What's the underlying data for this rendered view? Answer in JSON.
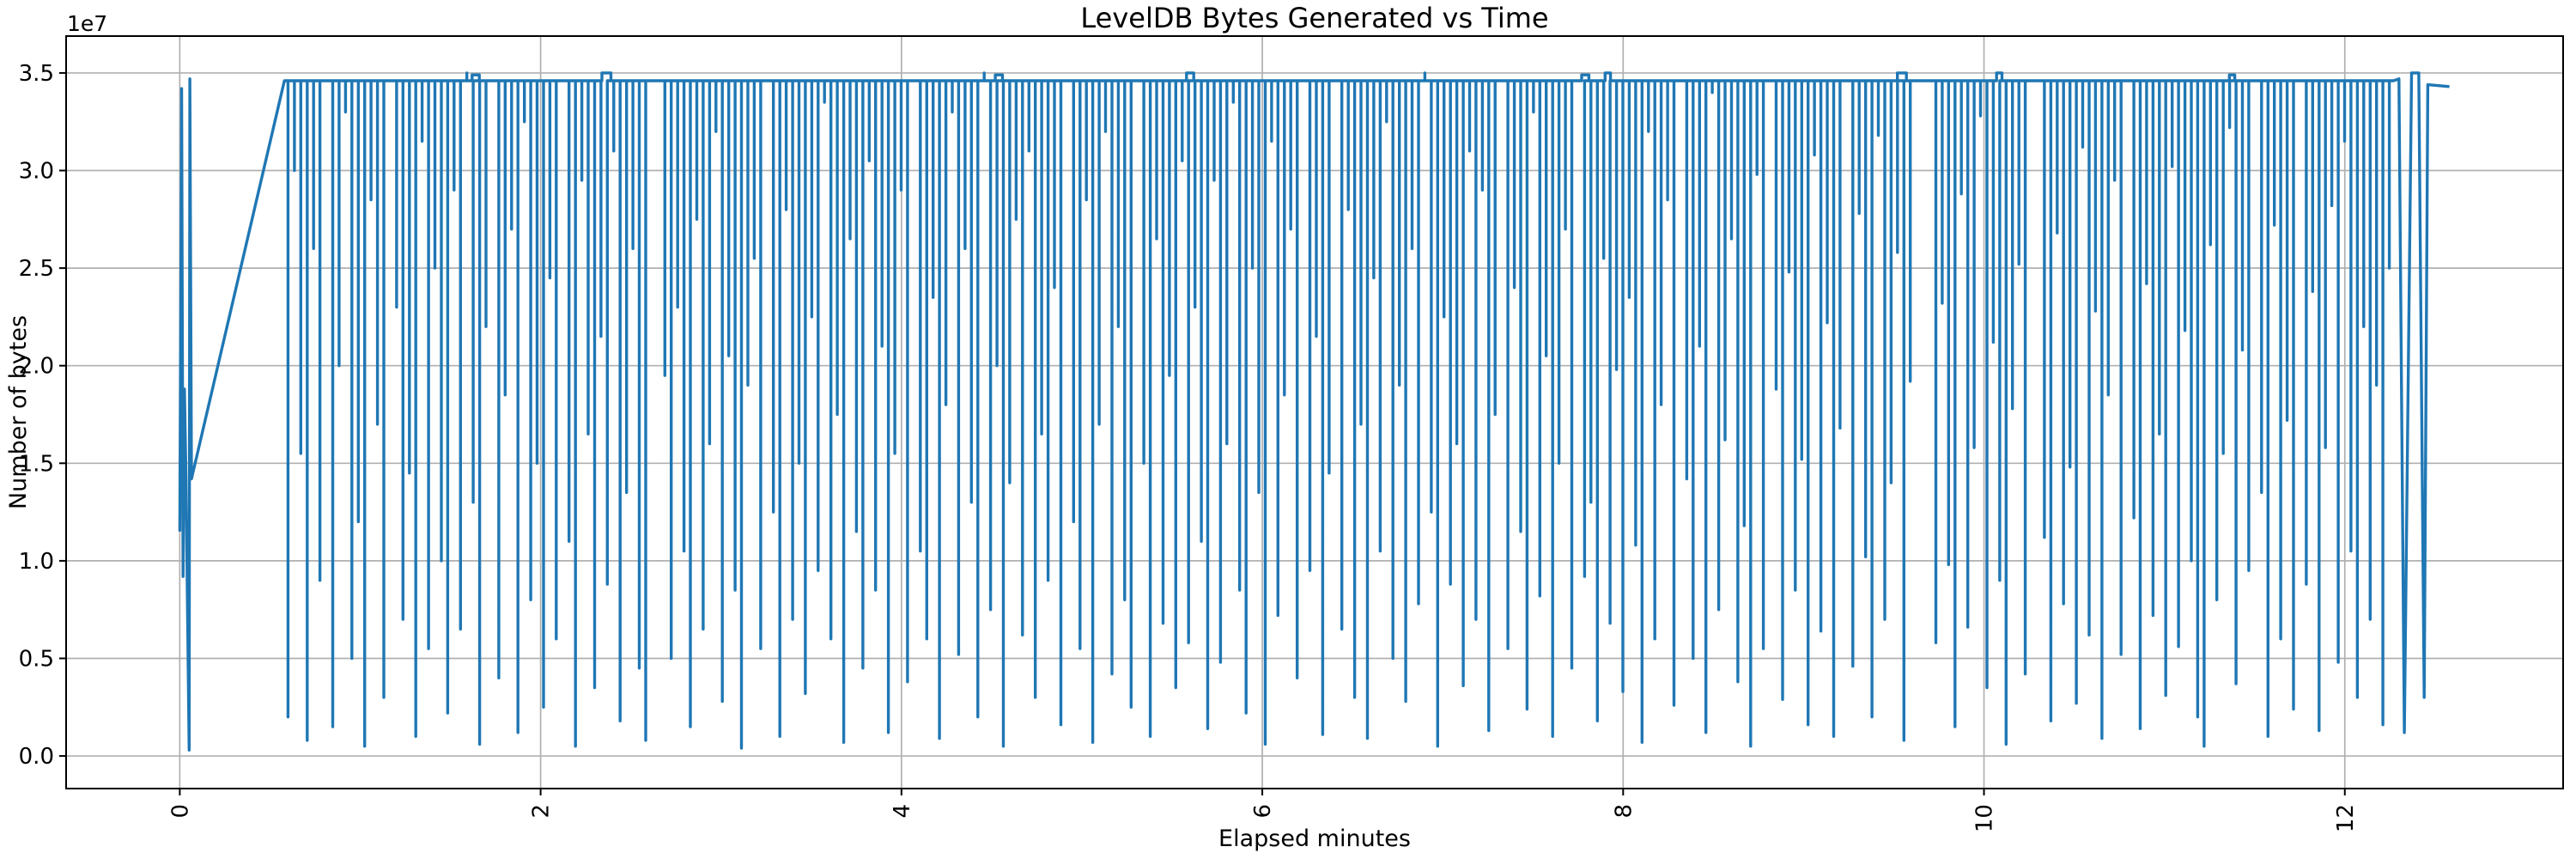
{
  "chart_data": {
    "type": "line",
    "title": "LevelDB Bytes Generated vs Time",
    "xlabel": "Elapsed minutes",
    "ylabel": "Number of bytes",
    "y_offset_text": "1e7",
    "y_unit": "1e7 bytes",
    "x_ticks": [
      0,
      2,
      4,
      6,
      8,
      10,
      12
    ],
    "x_tick_labels": [
      "0",
      "2",
      "4",
      "6",
      "8",
      "10",
      "12"
    ],
    "y_ticks": [
      0,
      0.5,
      1,
      1.5,
      2,
      2.5,
      3,
      3.5
    ],
    "y_tick_labels": [
      "0.0",
      "0.5",
      "1.0",
      "1.5",
      "2.0",
      "2.5",
      "3.0",
      "3.5"
    ],
    "xlim": [
      -0.63,
      13.21
    ],
    "ylim": [
      -0.167,
      3.689
    ],
    "grid": true,
    "legend": false,
    "line_color": "#1f77b4",
    "grid_color": "#b0b0b0",
    "spine_color": "#000000",
    "bg_color": "#ffffff",
    "series": {
      "baseline": 3.46,
      "intro": [
        [
          0.0,
          1.15
        ],
        [
          0.01,
          3.42
        ],
        [
          0.018,
          0.92
        ],
        [
          0.026,
          1.88
        ],
        [
          0.034,
          1.45
        ],
        [
          0.052,
          0.03
        ],
        [
          0.056,
          3.47
        ],
        [
          0.065,
          1.42
        ],
        [
          0.58,
          3.46
        ]
      ],
      "dips": {
        "x0": 0.6,
        "dx": 0.0354,
        "depths": [
          0.2,
          3.0,
          1.55,
          0.08,
          2.6,
          0.9,
          3.46,
          0.15,
          2.0,
          3.3,
          0.5,
          1.2,
          0.05,
          2.85,
          1.7,
          0.3,
          3.46,
          2.3,
          0.7,
          1.45,
          0.1,
          3.15,
          0.55,
          2.5,
          1.0,
          0.22,
          2.9,
          0.65,
          3.5,
          1.3,
          0.06,
          2.2,
          3.46,
          0.4,
          1.85,
          2.7,
          0.12,
          3.25,
          0.8,
          1.5,
          0.25,
          2.45,
          0.6,
          3.46,
          1.1,
          0.05,
          2.95,
          1.65,
          0.35,
          2.15,
          0.88,
          3.1,
          0.18,
          1.35,
          2.6,
          0.45,
          0.08,
          3.46,
          3.46,
          1.95,
          0.5,
          2.3,
          1.05,
          0.15,
          2.75,
          0.65,
          1.6,
          3.2,
          0.28,
          2.05,
          0.85,
          0.04,
          1.9,
          2.55,
          0.55,
          3.46,
          1.25,
          0.1,
          2.8,
          0.7,
          1.5,
          0.32,
          2.25,
          0.95,
          3.35,
          0.6,
          1.75,
          0.07,
          2.65,
          1.15,
          0.45,
          3.05,
          0.85,
          2.1,
          0.12,
          1.55,
          2.9,
          0.38,
          3.46,
          1.05,
          0.6,
          2.35,
          0.09,
          1.8,
          3.3,
          0.52,
          2.6,
          1.3,
          0.2,
          3.5,
          0.75,
          2.0,
          0.05,
          1.4,
          2.75,
          0.62,
          3.1,
          0.3,
          1.65,
          0.9,
          2.4,
          0.16,
          3.46,
          1.2,
          0.55,
          2.85,
          0.07,
          1.7,
          3.2,
          0.42,
          2.2,
          0.8,
          0.25,
          3.46,
          1.5,
          0.1,
          2.65,
          0.68,
          1.95,
          0.35,
          3.05,
          0.58,
          2.3,
          1.1,
          0.14,
          2.95,
          0.48,
          1.6,
          3.35,
          0.85,
          0.22,
          2.5,
          1.35,
          0.06,
          3.15,
          0.72,
          1.85,
          2.7,
          0.4,
          3.46,
          0.95,
          2.15,
          0.11,
          1.45,
          3.46,
          0.65,
          2.8,
          0.3,
          1.7,
          0.09,
          2.45,
          1.05,
          3.25,
          0.5,
          1.9,
          0.28,
          2.6,
          0.78,
          3.5,
          1.25,
          0.05,
          2.25,
          0.88,
          1.6,
          0.36,
          3.1,
          0.7,
          2.9,
          0.13,
          1.75,
          3.46,
          0.55,
          2.4,
          1.15,
          0.24,
          3.3,
          0.82,
          2.05,
          0.1,
          1.5,
          2.7,
          0.45,
          3.46,
          0.92,
          1.3,
          0.18,
          2.55,
          0.68,
          1.98,
          0.33,
          2.35,
          1.08,
          0.07,
          3.2,
          0.6,
          1.8,
          2.85,
          0.26,
          3.46,
          1.42,
          0.5,
          2.1,
          0.12,
          3.4,
          0.75,
          1.62,
          2.65,
          0.38,
          1.18,
          0.05,
          2.98,
          0.55,
          3.46,
          1.88,
          0.29,
          2.48,
          0.85,
          1.52,
          0.16,
          3.08,
          0.64,
          2.22,
          0.1,
          1.68,
          3.46,
          0.46,
          2.78,
          1.02,
          0.2,
          3.18,
          0.7,
          1.4,
          2.58,
          0.08,
          1.92,
          3.46,
          3.46,
          3.46,
          0.58,
          2.32,
          0.98,
          0.15,
          2.88,
          0.66,
          1.58,
          3.28,
          0.35,
          2.12,
          0.9,
          0.06,
          1.78,
          2.52,
          0.42,
          3.46,
          3.46,
          1.12,
          0.18,
          2.68,
          0.78,
          1.48,
          0.27,
          3.12,
          0.62,
          2.28,
          0.09,
          1.85,
          2.95,
          0.52,
          3.46,
          1.22,
          0.14,
          2.42,
          0.72,
          1.65,
          0.31,
          3.02,
          0.56,
          2.18,
          1.0,
          0.2,
          0.05,
          2.62,
          0.8,
          1.55,
          3.22,
          0.37,
          2.08,
          0.95,
          3.46,
          1.35,
          0.1,
          2.72,
          0.6,
          1.72,
          0.24,
          3.46,
          0.88,
          2.38,
          0.13,
          1.58,
          2.82,
          0.48,
          3.15,
          1.05,
          0.3,
          2.2,
          0.7,
          1.9,
          0.16,
          2.5
        ]
      },
      "bumps": [
        [
          1.62,
          1.66,
          3.49
        ],
        [
          2.34,
          2.39,
          3.5
        ],
        [
          4.52,
          4.56,
          3.49
        ],
        [
          5.58,
          5.62,
          3.5
        ],
        [
          7.77,
          7.81,
          3.49
        ],
        [
          7.9,
          7.93,
          3.5
        ],
        [
          9.52,
          9.57,
          3.5
        ],
        [
          10.07,
          10.1,
          3.5
        ],
        [
          11.36,
          11.39,
          3.49
        ]
      ],
      "outro": [
        [
          12.27,
          3.46
        ],
        [
          12.3,
          3.47
        ],
        [
          12.33,
          0.12
        ],
        [
          12.37,
          3.5
        ],
        [
          12.41,
          3.5
        ],
        [
          12.44,
          0.3
        ],
        [
          12.46,
          3.44
        ],
        [
          12.58,
          3.43
        ]
      ]
    }
  }
}
